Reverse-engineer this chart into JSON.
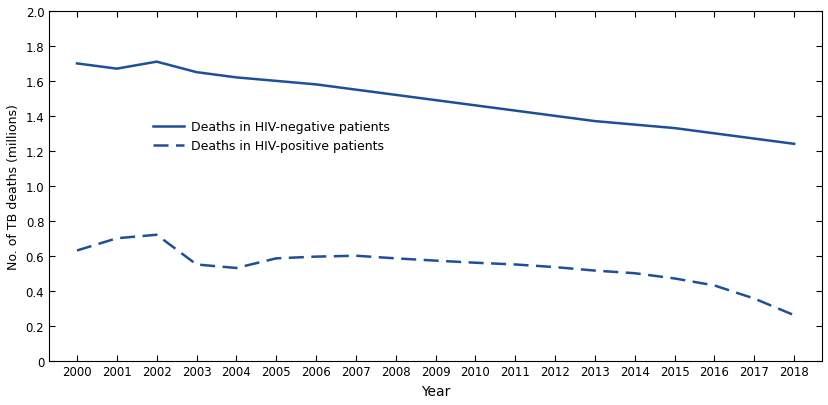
{
  "years": [
    2000,
    2001,
    2002,
    2003,
    2004,
    2005,
    2006,
    2007,
    2008,
    2009,
    2010,
    2011,
    2012,
    2013,
    2014,
    2015,
    2016,
    2017,
    2018
  ],
  "hiv_negative": [
    1.7,
    1.67,
    1.71,
    1.65,
    1.62,
    1.6,
    1.58,
    1.55,
    1.52,
    1.49,
    1.46,
    1.43,
    1.4,
    1.37,
    1.35,
    1.33,
    1.3,
    1.27,
    1.24
  ],
  "hiv_positive": [
    0.63,
    0.7,
    0.72,
    0.55,
    0.53,
    0.585,
    0.595,
    0.6,
    0.585,
    0.572,
    0.56,
    0.55,
    0.535,
    0.515,
    0.5,
    0.47,
    0.43,
    0.355,
    0.26
  ],
  "line_color": "#1e4f9c",
  "ylabel": "No. of TB deaths (millions)",
  "xlabel": "Year",
  "ylim": [
    0,
    2.0
  ],
  "yticks": [
    0,
    0.2,
    0.4,
    0.6,
    0.8,
    1.0,
    1.2,
    1.4,
    1.6,
    1.8,
    2.0
  ],
  "legend_neg": "Deaths in HIV-negative patients",
  "legend_pos": "Deaths in HIV-positive patients",
  "figsize": [
    8.29,
    4.06
  ],
  "dpi": 100
}
